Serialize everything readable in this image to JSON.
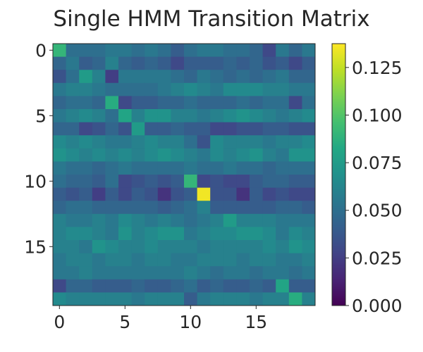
{
  "chart_data": {
    "type": "heatmap",
    "title": "Single HMM Transition Matrix",
    "xlabel": "",
    "ylabel": "",
    "x_ticks": [
      0,
      5,
      10,
      15
    ],
    "y_ticks": [
      0,
      5,
      10,
      15
    ],
    "colormap": "viridis",
    "colorbar": {
      "vmin": 0.0,
      "vmax": 0.1375,
      "ticks": [
        "0.000",
        "0.025",
        "0.050",
        "0.075",
        "0.100",
        "0.125"
      ]
    },
    "matrix": [
      [
        0.09,
        0.05,
        0.05,
        0.05,
        0.055,
        0.055,
        0.05,
        0.055,
        0.05,
        0.04,
        0.05,
        0.055,
        0.055,
        0.05,
        0.05,
        0.045,
        0.03,
        0.055,
        0.045,
        0.055
      ],
      [
        0.045,
        0.055,
        0.04,
        0.045,
        0.06,
        0.045,
        0.04,
        0.045,
        0.04,
        0.03,
        0.04,
        0.04,
        0.04,
        0.045,
        0.04,
        0.045,
        0.035,
        0.04,
        0.03,
        0.04
      ],
      [
        0.035,
        0.05,
        0.075,
        0.06,
        0.025,
        0.055,
        0.055,
        0.055,
        0.055,
        0.05,
        0.045,
        0.055,
        0.05,
        0.045,
        0.05,
        0.045,
        0.05,
        0.055,
        0.045,
        0.045
      ],
      [
        0.055,
        0.06,
        0.06,
        0.055,
        0.05,
        0.05,
        0.05,
        0.05,
        0.055,
        0.06,
        0.065,
        0.06,
        0.055,
        0.065,
        0.065,
        0.065,
        0.06,
        0.06,
        0.055,
        0.055
      ],
      [
        0.045,
        0.05,
        0.05,
        0.045,
        0.085,
        0.03,
        0.04,
        0.04,
        0.045,
        0.045,
        0.05,
        0.045,
        0.045,
        0.045,
        0.05,
        0.045,
        0.05,
        0.05,
        0.03,
        0.05
      ],
      [
        0.055,
        0.06,
        0.065,
        0.06,
        0.05,
        0.08,
        0.06,
        0.07,
        0.07,
        0.06,
        0.06,
        0.055,
        0.06,
        0.065,
        0.07,
        0.065,
        0.06,
        0.055,
        0.06,
        0.065
      ],
      [
        0.045,
        0.045,
        0.03,
        0.035,
        0.045,
        0.035,
        0.075,
        0.04,
        0.04,
        0.045,
        0.04,
        0.04,
        0.03,
        0.03,
        0.035,
        0.035,
        0.04,
        0.04,
        0.035,
        0.035
      ],
      [
        0.065,
        0.06,
        0.065,
        0.06,
        0.055,
        0.055,
        0.06,
        0.065,
        0.06,
        0.06,
        0.05,
        0.035,
        0.065,
        0.06,
        0.06,
        0.06,
        0.055,
        0.06,
        0.06,
        0.065
      ],
      [
        0.07,
        0.065,
        0.06,
        0.065,
        0.06,
        0.065,
        0.06,
        0.065,
        0.07,
        0.065,
        0.06,
        0.055,
        0.065,
        0.06,
        0.065,
        0.07,
        0.06,
        0.055,
        0.07,
        0.07
      ],
      [
        0.055,
        0.05,
        0.05,
        0.045,
        0.05,
        0.055,
        0.05,
        0.05,
        0.05,
        0.05,
        0.055,
        0.05,
        0.05,
        0.055,
        0.05,
        0.05,
        0.045,
        0.05,
        0.05,
        0.05
      ],
      [
        0.05,
        0.045,
        0.045,
        0.04,
        0.05,
        0.03,
        0.035,
        0.04,
        0.035,
        0.04,
        0.09,
        0.03,
        0.035,
        0.03,
        0.03,
        0.04,
        0.045,
        0.045,
        0.04,
        0.04
      ],
      [
        0.04,
        0.035,
        0.04,
        0.025,
        0.04,
        0.03,
        0.04,
        0.035,
        0.02,
        0.035,
        0.04,
        0.135,
        0.035,
        0.035,
        0.02,
        0.04,
        0.03,
        0.035,
        0.03,
        0.03
      ],
      [
        0.045,
        0.05,
        0.05,
        0.045,
        0.045,
        0.045,
        0.045,
        0.045,
        0.04,
        0.045,
        0.05,
        0.06,
        0.04,
        0.04,
        0.04,
        0.04,
        0.04,
        0.045,
        0.045,
        0.04
      ],
      [
        0.06,
        0.055,
        0.055,
        0.06,
        0.055,
        0.065,
        0.06,
        0.055,
        0.06,
        0.055,
        0.05,
        0.055,
        0.06,
        0.075,
        0.06,
        0.06,
        0.06,
        0.055,
        0.055,
        0.055
      ],
      [
        0.06,
        0.065,
        0.065,
        0.06,
        0.055,
        0.07,
        0.06,
        0.065,
        0.07,
        0.07,
        0.055,
        0.06,
        0.065,
        0.065,
        0.07,
        0.07,
        0.065,
        0.055,
        0.065,
        0.06
      ],
      [
        0.06,
        0.06,
        0.055,
        0.07,
        0.065,
        0.06,
        0.06,
        0.065,
        0.06,
        0.06,
        0.06,
        0.055,
        0.06,
        0.06,
        0.06,
        0.06,
        0.065,
        0.06,
        0.07,
        0.065
      ],
      [
        0.055,
        0.06,
        0.06,
        0.055,
        0.06,
        0.06,
        0.055,
        0.06,
        0.06,
        0.055,
        0.055,
        0.06,
        0.06,
        0.06,
        0.055,
        0.06,
        0.06,
        0.055,
        0.055,
        0.06
      ],
      [
        0.055,
        0.055,
        0.06,
        0.055,
        0.055,
        0.055,
        0.055,
        0.055,
        0.055,
        0.055,
        0.06,
        0.055,
        0.05,
        0.055,
        0.055,
        0.05,
        0.055,
        0.055,
        0.05,
        0.055
      ],
      [
        0.03,
        0.045,
        0.045,
        0.04,
        0.04,
        0.04,
        0.045,
        0.04,
        0.04,
        0.045,
        0.05,
        0.04,
        0.045,
        0.04,
        0.04,
        0.045,
        0.04,
        0.08,
        0.04,
        0.04
      ],
      [
        0.065,
        0.06,
        0.06,
        0.06,
        0.06,
        0.06,
        0.055,
        0.06,
        0.06,
        0.06,
        0.04,
        0.055,
        0.06,
        0.06,
        0.06,
        0.055,
        0.06,
        0.06,
        0.085,
        0.06
      ]
    ]
  }
}
